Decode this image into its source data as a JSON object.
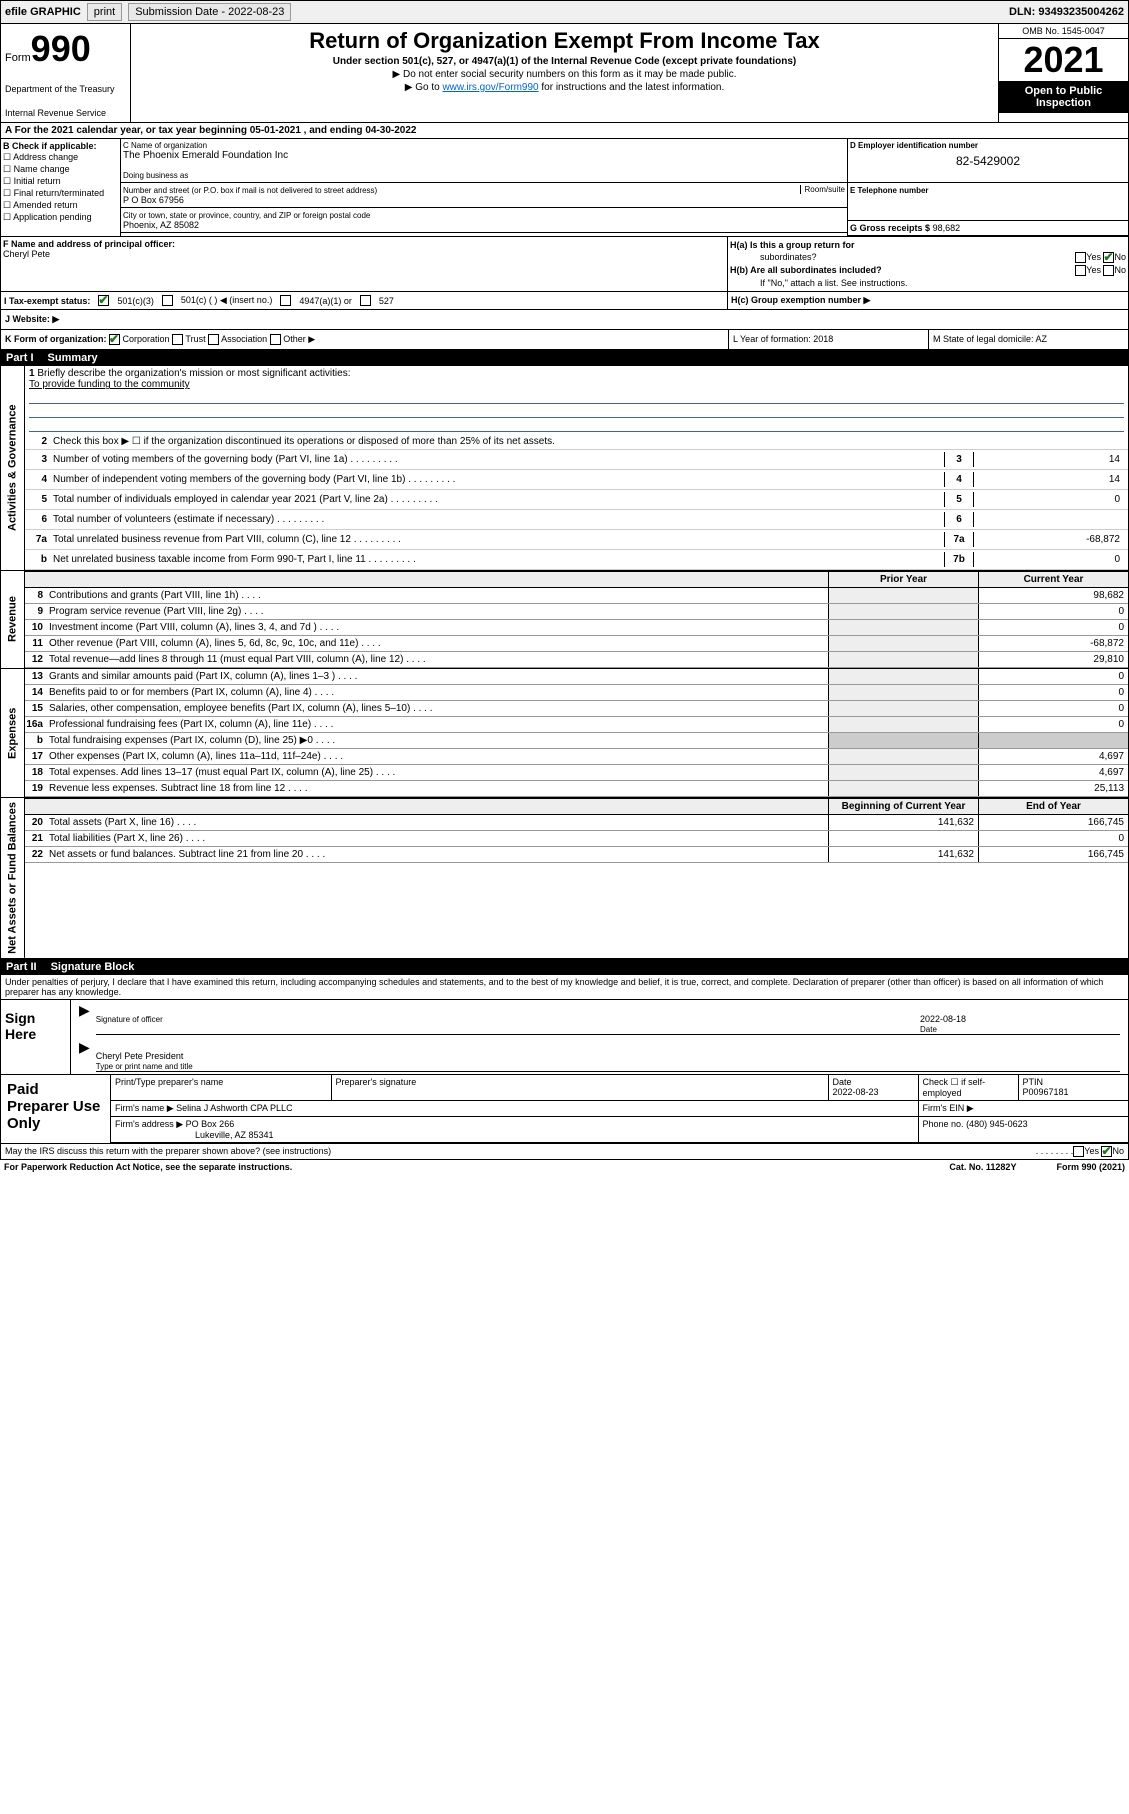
{
  "topbar": {
    "efile": "efile GRAPHIC",
    "print": "print",
    "subLabel": "Submission Date - 2022-08-23",
    "dln": "DLN: 93493235004262"
  },
  "header": {
    "formWord": "Form",
    "formNum": "990",
    "dept": "Department of the Treasury",
    "irs": "Internal Revenue Service",
    "title": "Return of Organization Exempt From Income Tax",
    "sub": "Under section 501(c), 527, or 4947(a)(1) of the Internal Revenue Code (except private foundations)",
    "note1": "▶ Do not enter social security numbers on this form as it may be made public.",
    "note2a": "▶ Go to ",
    "note2link": "www.irs.gov/Form990",
    "note2b": " for instructions and the latest information.",
    "omb": "OMB No. 1545-0047",
    "year": "2021",
    "open": "Open to Public Inspection"
  },
  "rowA": {
    "text": "A For the 2021 calendar year, or tax year beginning 05-01-2021   , and ending 04-30-2022"
  },
  "colB": {
    "label": "B Check if applicable:",
    "opts": [
      "Address change",
      "Name change",
      "Initial return",
      "Final return/terminated",
      "Amended return",
      "Application pending"
    ]
  },
  "colC": {
    "nameLbl": "C Name of organization",
    "name": "The Phoenix Emerald Foundation Inc",
    "dbaLbl": "Doing business as",
    "addrLbl": "Number and street (or P.O. box if mail is not delivered to street address)",
    "roomLbl": "Room/suite",
    "addr": "P O Box 67956",
    "cityLbl": "City or town, state or province, country, and ZIP or foreign postal code",
    "city": "Phoenix, AZ  85082"
  },
  "colD": {
    "lbl": "D Employer identification number",
    "val": "82-5429002"
  },
  "colE": {
    "lbl": "E Telephone number"
  },
  "colG": {
    "lbl": "G Gross receipts $",
    "val": "98,682"
  },
  "colF": {
    "lbl": "F  Name and address of principal officer:",
    "val": "Cheryl Pete"
  },
  "colH": {
    "ha": "H(a)  Is this a group return for",
    "ha2": "subordinates?",
    "hb": "H(b)  Are all subordinates included?",
    "hbNote": "If \"No,\" attach a list. See instructions.",
    "hc": "H(c)  Group exemption number ▶",
    "yes": "Yes",
    "no": "No"
  },
  "rowI": {
    "lbl": "I   Tax-exempt status:",
    "o1": "501(c)(3)",
    "o2": "501(c) (  ) ◀ (insert no.)",
    "o3": "4947(a)(1) or",
    "o4": "527"
  },
  "rowJ": {
    "lbl": "J   Website: ▶"
  },
  "rowK": {
    "lbl": "K Form of organization:",
    "o1": "Corporation",
    "o2": "Trust",
    "o3": "Association",
    "o4": "Other ▶",
    "l": "L Year of formation: 2018",
    "m": "M State of legal domicile: AZ"
  },
  "partI": {
    "num": "Part I",
    "title": "Summary"
  },
  "summary": {
    "l1lbl": "Briefly describe the organization's mission or most significant activities:",
    "l1val": "To provide funding to the community",
    "l2": "Check this box ▶ ☐  if the organization discontinued its operations or disposed of more than 25% of its net assets.",
    "lines": [
      {
        "n": "3",
        "t": "Number of voting members of the governing body (Part VI, line 1a)",
        "b": "3",
        "v": "14"
      },
      {
        "n": "4",
        "t": "Number of independent voting members of the governing body (Part VI, line 1b)",
        "b": "4",
        "v": "14"
      },
      {
        "n": "5",
        "t": "Total number of individuals employed in calendar year 2021 (Part V, line 2a)",
        "b": "5",
        "v": "0"
      },
      {
        "n": "6",
        "t": "Total number of volunteers (estimate if necessary)",
        "b": "6",
        "v": ""
      },
      {
        "n": "7a",
        "t": "Total unrelated business revenue from Part VIII, column (C), line 12",
        "b": "7a",
        "v": "-68,872"
      },
      {
        "n": "b",
        "t": "Net unrelated business taxable income from Form 990-T, Part I, line 11",
        "b": "7b",
        "v": "0"
      }
    ],
    "hdrPrior": "Prior Year",
    "hdrCurr": "Current Year",
    "revenue": [
      {
        "n": "8",
        "t": "Contributions and grants (Part VIII, line 1h)",
        "p": "",
        "c": "98,682"
      },
      {
        "n": "9",
        "t": "Program service revenue (Part VIII, line 2g)",
        "p": "",
        "c": "0"
      },
      {
        "n": "10",
        "t": "Investment income (Part VIII, column (A), lines 3, 4, and 7d )",
        "p": "",
        "c": "0"
      },
      {
        "n": "11",
        "t": "Other revenue (Part VIII, column (A), lines 5, 6d, 8c, 9c, 10c, and 11e)",
        "p": "",
        "c": "-68,872"
      },
      {
        "n": "12",
        "t": "Total revenue—add lines 8 through 11 (must equal Part VIII, column (A), line 12)",
        "p": "",
        "c": "29,810"
      }
    ],
    "expenses": [
      {
        "n": "13",
        "t": "Grants and similar amounts paid (Part IX, column (A), lines 1–3 )",
        "p": "",
        "c": "0"
      },
      {
        "n": "14",
        "t": "Benefits paid to or for members (Part IX, column (A), line 4)",
        "p": "",
        "c": "0"
      },
      {
        "n": "15",
        "t": "Salaries, other compensation, employee benefits (Part IX, column (A), lines 5–10)",
        "p": "",
        "c": "0"
      },
      {
        "n": "16a",
        "t": "Professional fundraising fees (Part IX, column (A), line 11e)",
        "p": "",
        "c": "0"
      },
      {
        "n": "b",
        "t": "Total fundraising expenses (Part IX, column (D), line 25) ▶0",
        "p": "—",
        "c": "—"
      },
      {
        "n": "17",
        "t": "Other expenses (Part IX, column (A), lines 11a–11d, 11f–24e)",
        "p": "",
        "c": "4,697"
      },
      {
        "n": "18",
        "t": "Total expenses. Add lines 13–17 (must equal Part IX, column (A), line 25)",
        "p": "",
        "c": "4,697"
      },
      {
        "n": "19",
        "t": "Revenue less expenses. Subtract line 18 from line 12",
        "p": "",
        "c": "25,113"
      }
    ],
    "hdrBeg": "Beginning of Current Year",
    "hdrEnd": "End of Year",
    "netassets": [
      {
        "n": "20",
        "t": "Total assets (Part X, line 16)",
        "p": "141,632",
        "c": "166,745"
      },
      {
        "n": "21",
        "t": "Total liabilities (Part X, line 26)",
        "p": "",
        "c": "0"
      },
      {
        "n": "22",
        "t": "Net assets or fund balances. Subtract line 21 from line 20",
        "p": "141,632",
        "c": "166,745"
      }
    ],
    "tabs": {
      "ag": "Activities & Governance",
      "rev": "Revenue",
      "exp": "Expenses",
      "na": "Net Assets or Fund Balances"
    }
  },
  "partII": {
    "num": "Part II",
    "title": "Signature Block"
  },
  "sig": {
    "decl": "Under penalties of perjury, I declare that I have examined this return, including accompanying schedules and statements, and to the best of my knowledge and belief, it is true, correct, and complete. Declaration of preparer (other than officer) is based on all information of which preparer has any knowledge.",
    "signHere": "Sign Here",
    "sigLbl": "Signature of officer",
    "dateLbl": "Date",
    "date": "2022-08-18",
    "name": "Cheryl Pete  President",
    "nameLbl": "Type or print name and title"
  },
  "prep": {
    "title": "Paid Preparer Use Only",
    "h1": "Print/Type preparer's name",
    "h2": "Preparer's signature",
    "h3": "Date",
    "h3v": "2022-08-23",
    "h4": "Check ☐ if self-employed",
    "h5": "PTIN",
    "h5v": "P00967181",
    "firmLbl": "Firm's name     ▶",
    "firm": "Selina J Ashworth CPA PLLC",
    "einLbl": "Firm's EIN ▶",
    "addrLbl": "Firm's address ▶",
    "addr": "PO Box 266",
    "city": "Lukeville, AZ  85341",
    "phoneLbl": "Phone no.",
    "phone": "(480) 945-0623"
  },
  "footer": {
    "discuss": "May the IRS discuss this return with the preparer shown above? (see instructions)",
    "yes": "Yes",
    "no": "No",
    "pra": "For Paperwork Reduction Act Notice, see the separate instructions.",
    "cat": "Cat. No. 11282Y",
    "form": "Form 990 (2021)"
  }
}
